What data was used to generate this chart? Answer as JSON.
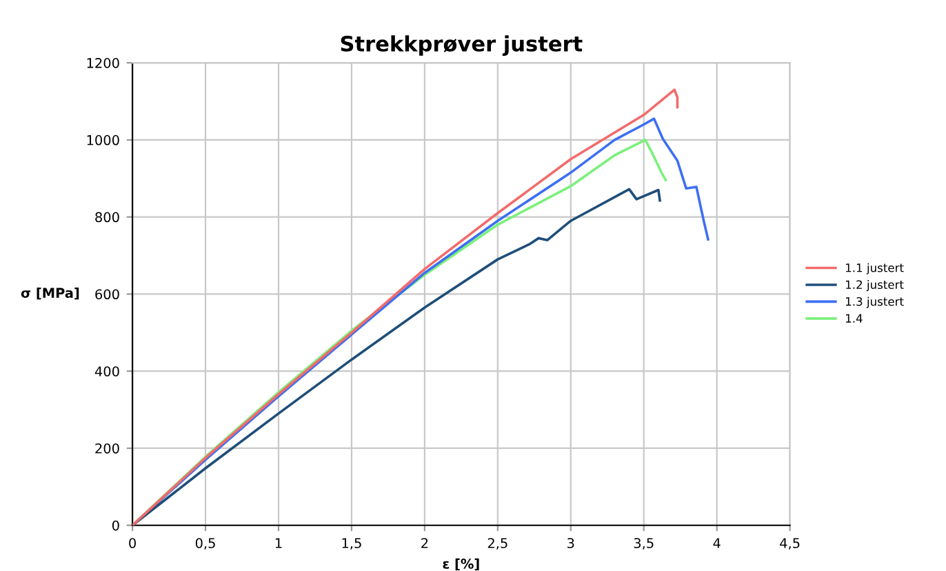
{
  "chart_data": {
    "type": "line",
    "title": "Strekkprøver justert",
    "xlabel": "ε [%]",
    "ylabel": "σ [MPa]",
    "xlim": [
      0,
      4.5
    ],
    "ylim": [
      0,
      1200
    ],
    "xticks": [
      0,
      {
        "value": 0.5,
        "label": "0,5"
      },
      1,
      {
        "value": 1.5,
        "label": "1,5"
      },
      2,
      {
        "value": 2.5,
        "label": "2,5"
      },
      3,
      {
        "value": 3.5,
        "label": "3,5"
      },
      4,
      {
        "value": 4.5,
        "label": "4,5"
      }
    ],
    "yticks": [
      0,
      200,
      400,
      600,
      800,
      1000,
      1200
    ],
    "grid": true,
    "legend": "right",
    "marker": "none",
    "line_style": "solid",
    "series": [
      {
        "name": "1.1 justert",
        "color": "#f26b6b",
        "x": [
          0,
          0.5,
          1,
          1.5,
          2,
          2.5,
          3,
          3.5,
          3.71,
          3.73,
          3.73
        ],
        "values": [
          0,
          175,
          340,
          500,
          665,
          810,
          950,
          1065,
          1130,
          1110,
          1085
        ]
      },
      {
        "name": "1.2 justert",
        "color": "#1f4e79",
        "x": [
          0,
          0.5,
          1,
          1.5,
          2,
          2.5,
          2.72,
          2.78,
          2.84,
          3,
          3.4,
          3.45,
          3.6,
          3.61
        ],
        "values": [
          0,
          148,
          290,
          430,
          565,
          690,
          730,
          745,
          740,
          790,
          872,
          846,
          870,
          843
        ]
      },
      {
        "name": "1.3 justert",
        "color": "#3d6ff2",
        "x": [
          0,
          0.5,
          1,
          2,
          2.5,
          3,
          3.3,
          3.5,
          3.57,
          3.63,
          3.73,
          3.79,
          3.86,
          3.91,
          3.94
        ],
        "values": [
          0,
          170,
          335,
          655,
          790,
          915,
          1000,
          1040,
          1055,
          1003,
          946,
          874,
          878,
          790,
          742
        ]
      },
      {
        "name": "1.4",
        "color": "#7cf07c",
        "x": [
          0,
          0.5,
          1,
          1.5,
          2,
          2.5,
          3,
          3.3,
          3.51,
          3.56,
          3.62,
          3.65
        ],
        "values": [
          0,
          178,
          345,
          505,
          650,
          780,
          880,
          960,
          1000,
          964,
          916,
          896
        ]
      }
    ]
  }
}
